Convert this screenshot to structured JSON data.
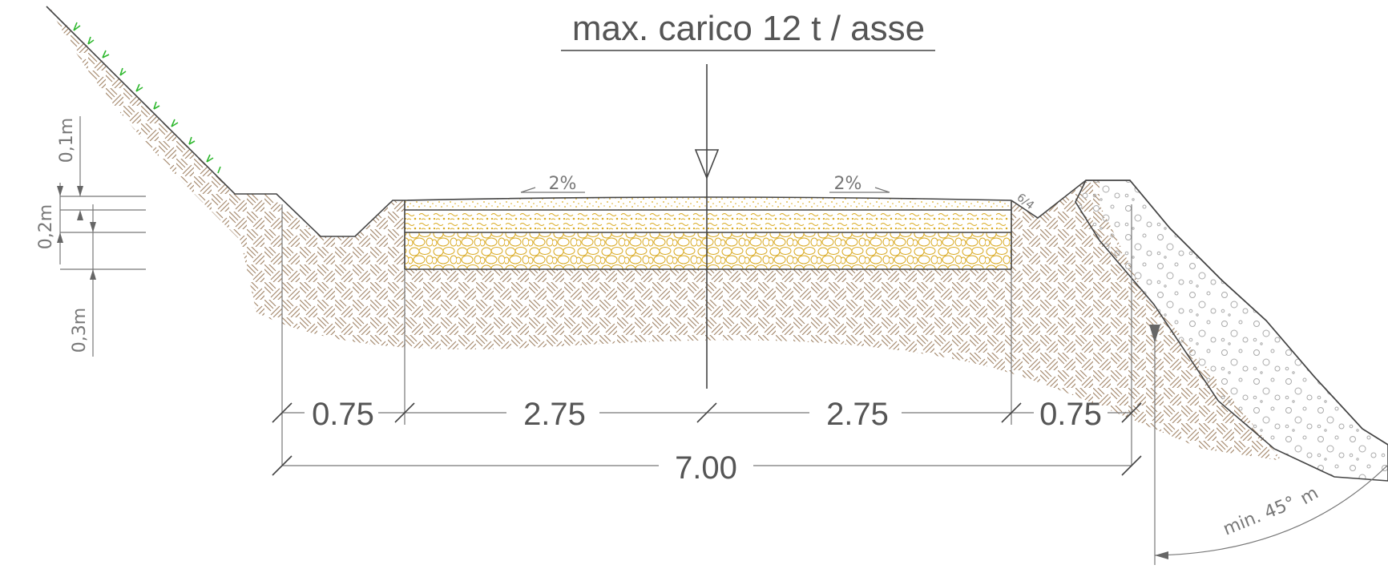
{
  "title": "max. carico 12 t / asse",
  "slopes": {
    "left": "2%",
    "right": "2%",
    "bank": "6/4"
  },
  "layer_thickness": {
    "top": "0,1m",
    "middle": "0,2m",
    "bottom": "0,3m"
  },
  "dimensions": {
    "shoulder_left": "0.75",
    "lane_left": "2.75",
    "lane_right": "2.75",
    "shoulder_right": "0.75",
    "total": "7.00"
  },
  "angle_label": "min. 45°",
  "angle_unit": "m",
  "colors": {
    "soil": "#a58a6e",
    "gravel": "#d9a91f",
    "grass": "#2fb82f",
    "line": "#444444",
    "text": "#555555"
  }
}
